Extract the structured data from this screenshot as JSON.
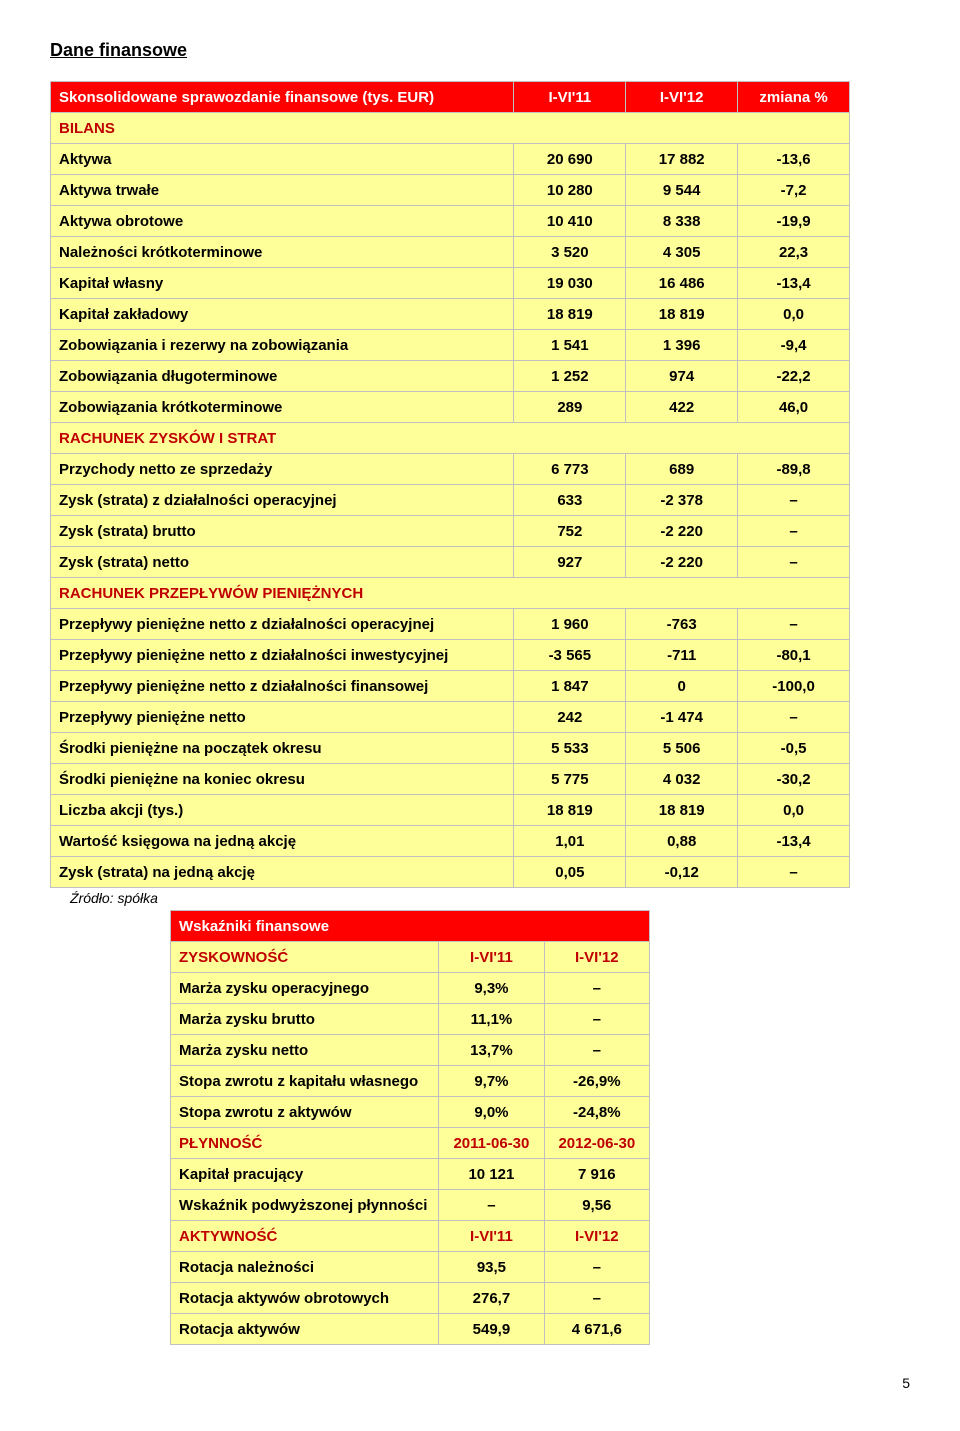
{
  "title": "Dane finansowe",
  "mainTable": {
    "headerLabel": "Skonsolidowane sprawozdanie finansowe (tys. EUR)",
    "col1": "I-VI'11",
    "col2": "I-VI'12",
    "col3": "zmiana %",
    "sections": {
      "bilans": "BILANS",
      "rzis": "RACHUNEK ZYSKÓW I STRAT",
      "rpp": "RACHUNEK PRZEPŁYWÓW PIENIĘŻNYCH"
    },
    "rows": [
      {
        "section": "bilans"
      },
      {
        "label": "Aktywa",
        "v1": "20 690",
        "v2": "17 882",
        "v3": "-13,6"
      },
      {
        "label": "Aktywa trwałe",
        "v1": "10 280",
        "v2": "9 544",
        "v3": "-7,2"
      },
      {
        "label": "Aktywa obrotowe",
        "v1": "10 410",
        "v2": "8 338",
        "v3": "-19,9"
      },
      {
        "label": "Należności krótkoterminowe",
        "v1": "3 520",
        "v2": "4 305",
        "v3": "22,3"
      },
      {
        "label": "Kapitał własny",
        "v1": "19 030",
        "v2": "16 486",
        "v3": "-13,4"
      },
      {
        "label": "Kapitał zakładowy",
        "v1": "18 819",
        "v2": "18 819",
        "v3": "0,0"
      },
      {
        "label": "Zobowiązania i rezerwy na zobowiązania",
        "v1": "1 541",
        "v2": "1 396",
        "v3": "-9,4"
      },
      {
        "label": "Zobowiązania długoterminowe",
        "v1": "1 252",
        "v2": "974",
        "v3": "-22,2"
      },
      {
        "label": "Zobowiązania krótkoterminowe",
        "v1": "289",
        "v2": "422",
        "v3": "46,0"
      },
      {
        "section": "rzis"
      },
      {
        "label": "Przychody netto ze sprzedaży",
        "v1": "6 773",
        "v2": "689",
        "v3": "-89,8"
      },
      {
        "label": "Zysk (strata) z działalności operacyjnej",
        "v1": "633",
        "v2": "-2 378",
        "v3": "–"
      },
      {
        "label": "Zysk (strata) brutto",
        "v1": "752",
        "v2": "-2 220",
        "v3": "–"
      },
      {
        "label": "Zysk (strata) netto",
        "v1": "927",
        "v2": "-2 220",
        "v3": "–"
      },
      {
        "section": "rpp"
      },
      {
        "label": "Przepływy pieniężne netto z działalności operacyjnej",
        "v1": "1 960",
        "v2": "-763",
        "v3": "–"
      },
      {
        "label": "Przepływy pieniężne netto z działalności inwestycyjnej",
        "v1": "-3 565",
        "v2": "-711",
        "v3": "-80,1"
      },
      {
        "label": "Przepływy pieniężne netto z działalności finansowej",
        "v1": "1 847",
        "v2": "0",
        "v3": "-100,0"
      },
      {
        "label": "Przepływy pieniężne netto",
        "v1": "242",
        "v2": "-1 474",
        "v3": "–"
      },
      {
        "label": "Środki pieniężne na początek okresu",
        "v1": "5 533",
        "v2": "5 506",
        "v3": "-0,5"
      },
      {
        "label": "Środki pieniężne na koniec okresu",
        "v1": "5 775",
        "v2": "4 032",
        "v3": "-30,2"
      },
      {
        "label": "Liczba akcji (tys.)",
        "v1": "18 819",
        "v2": "18 819",
        "v3": "0,0"
      },
      {
        "label": "Wartość księgowa na jedną akcję",
        "v1": "1,01",
        "v2": "0,88",
        "v3": "-13,4"
      },
      {
        "label": "Zysk (strata) na jedną akcję",
        "v1": "0,05",
        "v2": "-0,12",
        "v3": "–"
      }
    ]
  },
  "source": "Źródło: spółka",
  "ratios": {
    "title": "Wskaźniki finansowe",
    "groups": [
      {
        "hdr": "ZYSKOWNOŚĆ",
        "c1": "I-VI'11",
        "c2": "I-VI'12",
        "rows": [
          {
            "label": "Marża zysku operacyjnego",
            "v1": "9,3%",
            "v2": "–"
          },
          {
            "label": "Marża zysku brutto",
            "v1": "11,1%",
            "v2": "–"
          },
          {
            "label": "Marża zysku netto",
            "v1": "13,7%",
            "v2": "–"
          },
          {
            "label": "Stopa zwrotu z kapitału własnego",
            "v1": "9,7%",
            "v2": "-26,9%"
          },
          {
            "label": "Stopa zwrotu z aktywów",
            "v1": "9,0%",
            "v2": "-24,8%"
          }
        ]
      },
      {
        "hdr": "PŁYNNOŚĆ",
        "c1": "2011-06-30",
        "c2": "2012-06-30",
        "rows": [
          {
            "label": "Kapitał pracujący",
            "v1": "10 121",
            "v2": "7 916"
          },
          {
            "label": "Wskaźnik podwyższonej płynności",
            "v1": "–",
            "v2": "9,56"
          }
        ]
      },
      {
        "hdr": "AKTYWNOŚĆ",
        "c1": "I-VI'11",
        "c2": "I-VI'12",
        "rows": [
          {
            "label": "Rotacja należności",
            "v1": "93,5",
            "v2": "–"
          },
          {
            "label": "Rotacja aktywów obrotowych",
            "v1": "276,7",
            "v2": "–"
          },
          {
            "label": "Rotacja aktywów",
            "v1": "549,9",
            "v2": "4 671,6"
          }
        ]
      }
    ]
  },
  "pageNumber": "5"
}
